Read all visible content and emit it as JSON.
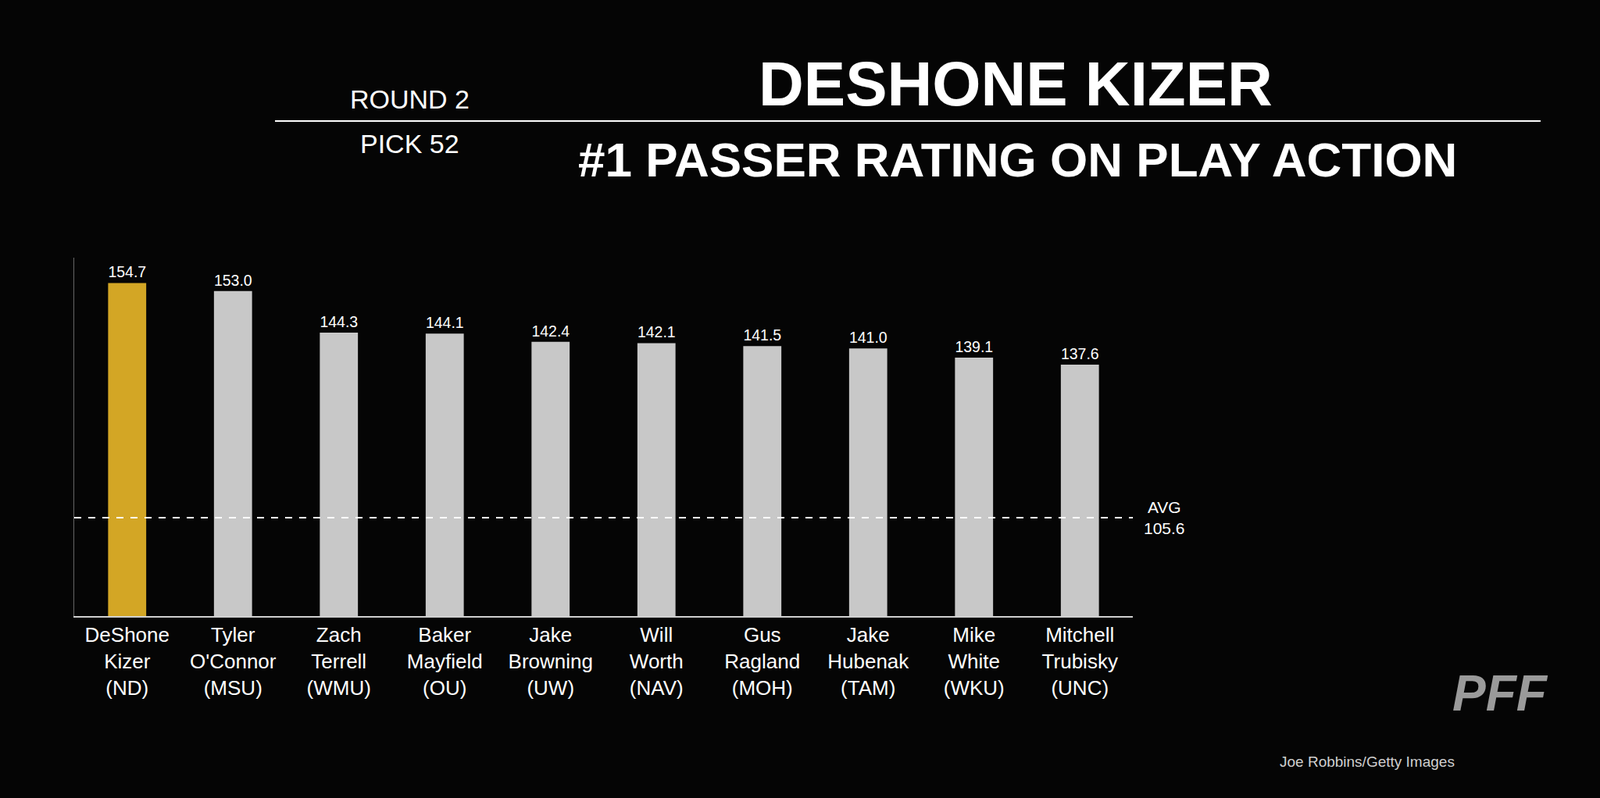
{
  "chart_data": {
    "type": "bar",
    "title": "DESHONE KIZER",
    "subtitle": "#1 PASSER RATING ON PLAY ACTION",
    "round": "ROUND 2",
    "pick": "PICK 52",
    "categories": [
      "DeShone Kizer (ND)",
      "Tyler O'Connor (MSU)",
      "Zach Terrell (WMU)",
      "Baker Mayfield (OU)",
      "Jake Browning (UW)",
      "Will Worth (NAV)",
      "Gus Ragland (MOH)",
      "Jake Hubenak (TAM)",
      "Mike White (WKU)",
      "Mitchell Trubisky (UNC)"
    ],
    "values": [
      154.7,
      153.0,
      144.3,
      144.1,
      142.4,
      142.1,
      141.5,
      141.0,
      139.1,
      137.6
    ],
    "value_labels": [
      "154.7",
      "153.0",
      "144.3",
      "144.1",
      "142.4",
      "142.1",
      "141.5",
      "141.0",
      "139.1",
      "137.6"
    ],
    "colors": [
      "#d3a625",
      "#c8c8c8",
      "#c8c8c8",
      "#c8c8c8",
      "#c8c8c8",
      "#c8c8c8",
      "#c8c8c8",
      "#c8c8c8",
      "#c8c8c8",
      "#c8c8c8"
    ],
    "data_labels": true,
    "tick_labels": "x",
    "grid": false,
    "ylim": [
      85,
      160
    ],
    "yticks": [],
    "reference_line": {
      "label": "AVG",
      "value": 105.6
    },
    "credit": "Joe Robbins/Getty Images",
    "logo_text": "PFF"
  }
}
